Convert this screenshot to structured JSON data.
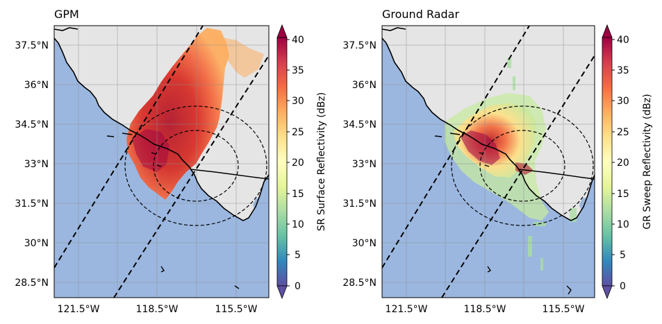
{
  "panels": [
    {
      "id": "gpm",
      "title": "GPM",
      "colorbar_label": "SR Surface Reflectivity (dBz)"
    },
    {
      "id": "gr",
      "title": "Ground Radar",
      "colorbar_label": "GR Sweep Reflectivity (dBz)"
    }
  ],
  "lat_ticks": [
    "37.5°N",
    "36°N",
    "34.5°N",
    "33°N",
    "31.5°N",
    "30°N",
    "28.5°N"
  ],
  "lon_ticks": [
    "121.5°W",
    "118.5°W",
    "115.5°W"
  ],
  "colorbar_ticks": [
    "40",
    "35",
    "30",
    "25",
    "20",
    "15",
    "10",
    "5",
    "0"
  ],
  "colors": {
    "ocean": "#9bb7e0",
    "land": "#e5e5e5",
    "coast": "#000000",
    "grid": "#999999"
  }
}
